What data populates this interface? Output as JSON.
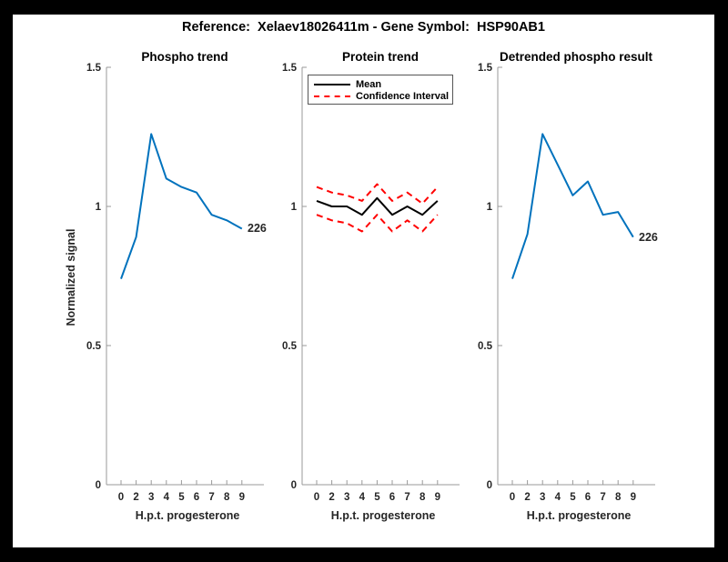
{
  "figure": {
    "title": "Reference:  Xelaev18026411m - Gene Symbol:  HSP90AB1"
  },
  "colors": {
    "line_blue": "#0072BD",
    "mean_black": "#000000",
    "ci_red": "#FF0000",
    "axis_gray": "#999999",
    "tick_text": "#262626",
    "figure_bg": "#ffffff",
    "frame_bg": "#000000"
  },
  "axes": {
    "ylabel": "Normalized signal",
    "xlabel": "H.p.t. progesterone",
    "ylim": [
      0,
      1.5
    ],
    "yticks": [
      0,
      0.5,
      1,
      1.5
    ],
    "ytick_labels": [
      "0",
      "0.5",
      "1",
      "1.5"
    ],
    "xtick_labels": [
      "0",
      "2",
      "3",
      "4",
      "5",
      "6",
      "7",
      "8",
      "9"
    ],
    "grid": false
  },
  "legend": {
    "position": "top-left-of-middle-plot",
    "entries": [
      {
        "label": "Mean",
        "color": "#000000",
        "style": "solid"
      },
      {
        "label": "Confidence Interval",
        "color": "#FF0000",
        "style": "dashed"
      }
    ]
  },
  "chart_data": [
    {
      "type": "line",
      "title": "Phospho trend",
      "xlabel": "H.p.t. progesterone",
      "ylabel": "Normalized signal",
      "ylim": [
        0,
        1.5
      ],
      "categories": [
        "0",
        "2",
        "3",
        "4",
        "5",
        "6",
        "7",
        "8",
        "9"
      ],
      "series": [
        {
          "name": "phospho-signal",
          "color": "#0072BD",
          "style": "solid",
          "values": [
            0.74,
            0.89,
            1.26,
            1.1,
            1.07,
            1.05,
            0.97,
            0.95,
            0.92
          ]
        }
      ],
      "end_label": "226"
    },
    {
      "type": "line",
      "title": "Protein trend",
      "xlabel": "H.p.t. progesterone",
      "ylim": [
        0,
        1.5
      ],
      "categories": [
        "0",
        "2",
        "3",
        "4",
        "5",
        "6",
        "7",
        "8",
        "9"
      ],
      "legend_position": "top-left",
      "series": [
        {
          "name": "mean",
          "color": "#000000",
          "style": "solid",
          "values": [
            1.02,
            1.0,
            1.0,
            0.97,
            1.03,
            0.97,
            1.0,
            0.97,
            1.02
          ]
        },
        {
          "name": "confidence-upper",
          "color": "#FF0000",
          "style": "dashed",
          "values": [
            1.07,
            1.05,
            1.04,
            1.02,
            1.08,
            1.02,
            1.05,
            1.01,
            1.07
          ]
        },
        {
          "name": "confidence-lower",
          "color": "#FF0000",
          "style": "dashed",
          "values": [
            0.97,
            0.95,
            0.94,
            0.91,
            0.97,
            0.91,
            0.95,
            0.91,
            0.97
          ]
        }
      ],
      "end_label": ""
    },
    {
      "type": "line",
      "title": "Detrended phospho result",
      "xlabel": "H.p.t. progesterone",
      "ylim": [
        0,
        1.5
      ],
      "categories": [
        "0",
        "2",
        "3",
        "4",
        "5",
        "6",
        "7",
        "8",
        "9"
      ],
      "series": [
        {
          "name": "detrended-phospho",
          "color": "#0072BD",
          "style": "solid",
          "values": [
            0.74,
            0.9,
            1.26,
            1.15,
            1.04,
            1.09,
            0.97,
            0.98,
            0.89
          ]
        }
      ],
      "end_label": "226"
    }
  ]
}
